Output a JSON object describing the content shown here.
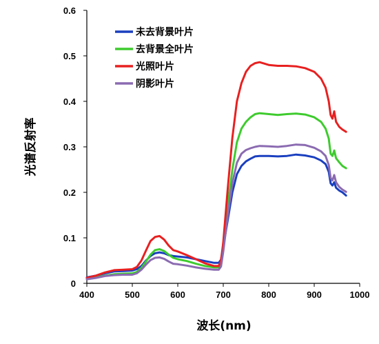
{
  "chart_data": {
    "type": "line",
    "xlabel": "波长(nm)",
    "ylabel": "光谱反射率",
    "xlim": [
      400,
      1000
    ],
    "ylim": [
      0,
      0.6
    ],
    "xticks": [
      400,
      500,
      600,
      700,
      800,
      900,
      1000
    ],
    "yticks": [
      0,
      0.1,
      0.2,
      0.3,
      0.4,
      0.5,
      0.6
    ],
    "ytick_labels": [
      "0",
      "0.1",
      "0.2",
      "0.3",
      "0.4",
      "0.5",
      "0.6"
    ],
    "grid": false,
    "legend_position": "top-left",
    "series": [
      {
        "name": "未去背景叶片",
        "color": "#1a3fbf",
        "points": [
          [
            400,
            0.013
          ],
          [
            420,
            0.017
          ],
          [
            440,
            0.022
          ],
          [
            460,
            0.026
          ],
          [
            480,
            0.027
          ],
          [
            500,
            0.028
          ],
          [
            510,
            0.031
          ],
          [
            520,
            0.038
          ],
          [
            530,
            0.05
          ],
          [
            540,
            0.06
          ],
          [
            550,
            0.066
          ],
          [
            560,
            0.068
          ],
          [
            570,
            0.066
          ],
          [
            580,
            0.062
          ],
          [
            590,
            0.06
          ],
          [
            600,
            0.059
          ],
          [
            620,
            0.057
          ],
          [
            640,
            0.053
          ],
          [
            660,
            0.049
          ],
          [
            680,
            0.045
          ],
          [
            690,
            0.045
          ],
          [
            695,
            0.052
          ],
          [
            700,
            0.08
          ],
          [
            710,
            0.14
          ],
          [
            720,
            0.2
          ],
          [
            730,
            0.24
          ],
          [
            740,
            0.258
          ],
          [
            750,
            0.268
          ],
          [
            760,
            0.274
          ],
          [
            770,
            0.279
          ],
          [
            780,
            0.28
          ],
          [
            800,
            0.28
          ],
          [
            820,
            0.279
          ],
          [
            840,
            0.28
          ],
          [
            860,
            0.283
          ],
          [
            880,
            0.281
          ],
          [
            900,
            0.277
          ],
          [
            915,
            0.27
          ],
          [
            925,
            0.262
          ],
          [
            932,
            0.245
          ],
          [
            936,
            0.22
          ],
          [
            940,
            0.215
          ],
          [
            944,
            0.222
          ],
          [
            948,
            0.21
          ],
          [
            955,
            0.204
          ],
          [
            962,
            0.2
          ],
          [
            970,
            0.193
          ]
        ]
      },
      {
        "name": "去背景全叶片",
        "color": "#3ecb2e",
        "points": [
          [
            400,
            0.01
          ],
          [
            420,
            0.013
          ],
          [
            440,
            0.017
          ],
          [
            460,
            0.02
          ],
          [
            480,
            0.021
          ],
          [
            500,
            0.022
          ],
          [
            510,
            0.025
          ],
          [
            520,
            0.034
          ],
          [
            530,
            0.048
          ],
          [
            540,
            0.063
          ],
          [
            550,
            0.073
          ],
          [
            560,
            0.075
          ],
          [
            570,
            0.071
          ],
          [
            580,
            0.063
          ],
          [
            590,
            0.056
          ],
          [
            600,
            0.053
          ],
          [
            620,
            0.049
          ],
          [
            640,
            0.043
          ],
          [
            660,
            0.038
          ],
          [
            680,
            0.035
          ],
          [
            690,
            0.035
          ],
          [
            695,
            0.045
          ],
          [
            700,
            0.08
          ],
          [
            710,
            0.17
          ],
          [
            720,
            0.25
          ],
          [
            730,
            0.31
          ],
          [
            740,
            0.34
          ],
          [
            750,
            0.355
          ],
          [
            760,
            0.365
          ],
          [
            770,
            0.372
          ],
          [
            780,
            0.374
          ],
          [
            800,
            0.372
          ],
          [
            820,
            0.37
          ],
          [
            840,
            0.372
          ],
          [
            860,
            0.373
          ],
          [
            880,
            0.371
          ],
          [
            900,
            0.365
          ],
          [
            915,
            0.355
          ],
          [
            925,
            0.34
          ],
          [
            932,
            0.318
          ],
          [
            936,
            0.285
          ],
          [
            940,
            0.28
          ],
          [
            944,
            0.292
          ],
          [
            948,
            0.275
          ],
          [
            955,
            0.266
          ],
          [
            962,
            0.258
          ],
          [
            970,
            0.253
          ]
        ]
      },
      {
        "name": "光照叶片",
        "color": "#e82020",
        "points": [
          [
            400,
            0.012
          ],
          [
            420,
            0.017
          ],
          [
            440,
            0.024
          ],
          [
            460,
            0.029
          ],
          [
            480,
            0.03
          ],
          [
            500,
            0.031
          ],
          [
            510,
            0.036
          ],
          [
            520,
            0.05
          ],
          [
            530,
            0.072
          ],
          [
            540,
            0.093
          ],
          [
            550,
            0.102
          ],
          [
            560,
            0.104
          ],
          [
            570,
            0.096
          ],
          [
            580,
            0.083
          ],
          [
            590,
            0.073
          ],
          [
            600,
            0.07
          ],
          [
            620,
            0.062
          ],
          [
            640,
            0.053
          ],
          [
            660,
            0.044
          ],
          [
            680,
            0.038
          ],
          [
            690,
            0.038
          ],
          [
            695,
            0.05
          ],
          [
            700,
            0.09
          ],
          [
            710,
            0.21
          ],
          [
            720,
            0.32
          ],
          [
            730,
            0.4
          ],
          [
            740,
            0.44
          ],
          [
            750,
            0.465
          ],
          [
            760,
            0.478
          ],
          [
            770,
            0.484
          ],
          [
            780,
            0.486
          ],
          [
            800,
            0.48
          ],
          [
            820,
            0.478
          ],
          [
            840,
            0.478
          ],
          [
            860,
            0.477
          ],
          [
            880,
            0.473
          ],
          [
            900,
            0.465
          ],
          [
            915,
            0.45
          ],
          [
            925,
            0.43
          ],
          [
            932,
            0.4
          ],
          [
            936,
            0.37
          ],
          [
            940,
            0.362
          ],
          [
            944,
            0.378
          ],
          [
            948,
            0.355
          ],
          [
            955,
            0.344
          ],
          [
            962,
            0.338
          ],
          [
            970,
            0.333
          ]
        ]
      },
      {
        "name": "阴影叶片",
        "color": "#8b6bb1",
        "points": [
          [
            400,
            0.009
          ],
          [
            420,
            0.012
          ],
          [
            440,
            0.016
          ],
          [
            460,
            0.018
          ],
          [
            480,
            0.019
          ],
          [
            500,
            0.019
          ],
          [
            510,
            0.022
          ],
          [
            520,
            0.03
          ],
          [
            530,
            0.041
          ],
          [
            540,
            0.051
          ],
          [
            550,
            0.056
          ],
          [
            560,
            0.057
          ],
          [
            570,
            0.054
          ],
          [
            580,
            0.048
          ],
          [
            590,
            0.043
          ],
          [
            600,
            0.042
          ],
          [
            620,
            0.039
          ],
          [
            640,
            0.035
          ],
          [
            660,
            0.032
          ],
          [
            680,
            0.03
          ],
          [
            690,
            0.03
          ],
          [
            695,
            0.037
          ],
          [
            700,
            0.07
          ],
          [
            710,
            0.15
          ],
          [
            720,
            0.22
          ],
          [
            730,
            0.265
          ],
          [
            740,
            0.285
          ],
          [
            750,
            0.293
          ],
          [
            760,
            0.297
          ],
          [
            770,
            0.3
          ],
          [
            780,
            0.302
          ],
          [
            800,
            0.301
          ],
          [
            820,
            0.3
          ],
          [
            840,
            0.302
          ],
          [
            860,
            0.305
          ],
          [
            880,
            0.304
          ],
          [
            900,
            0.298
          ],
          [
            915,
            0.29
          ],
          [
            925,
            0.28
          ],
          [
            932,
            0.26
          ],
          [
            936,
            0.232
          ],
          [
            940,
            0.226
          ],
          [
            944,
            0.238
          ],
          [
            948,
            0.222
          ],
          [
            955,
            0.212
          ],
          [
            962,
            0.206
          ],
          [
            970,
            0.201
          ]
        ]
      }
    ]
  }
}
